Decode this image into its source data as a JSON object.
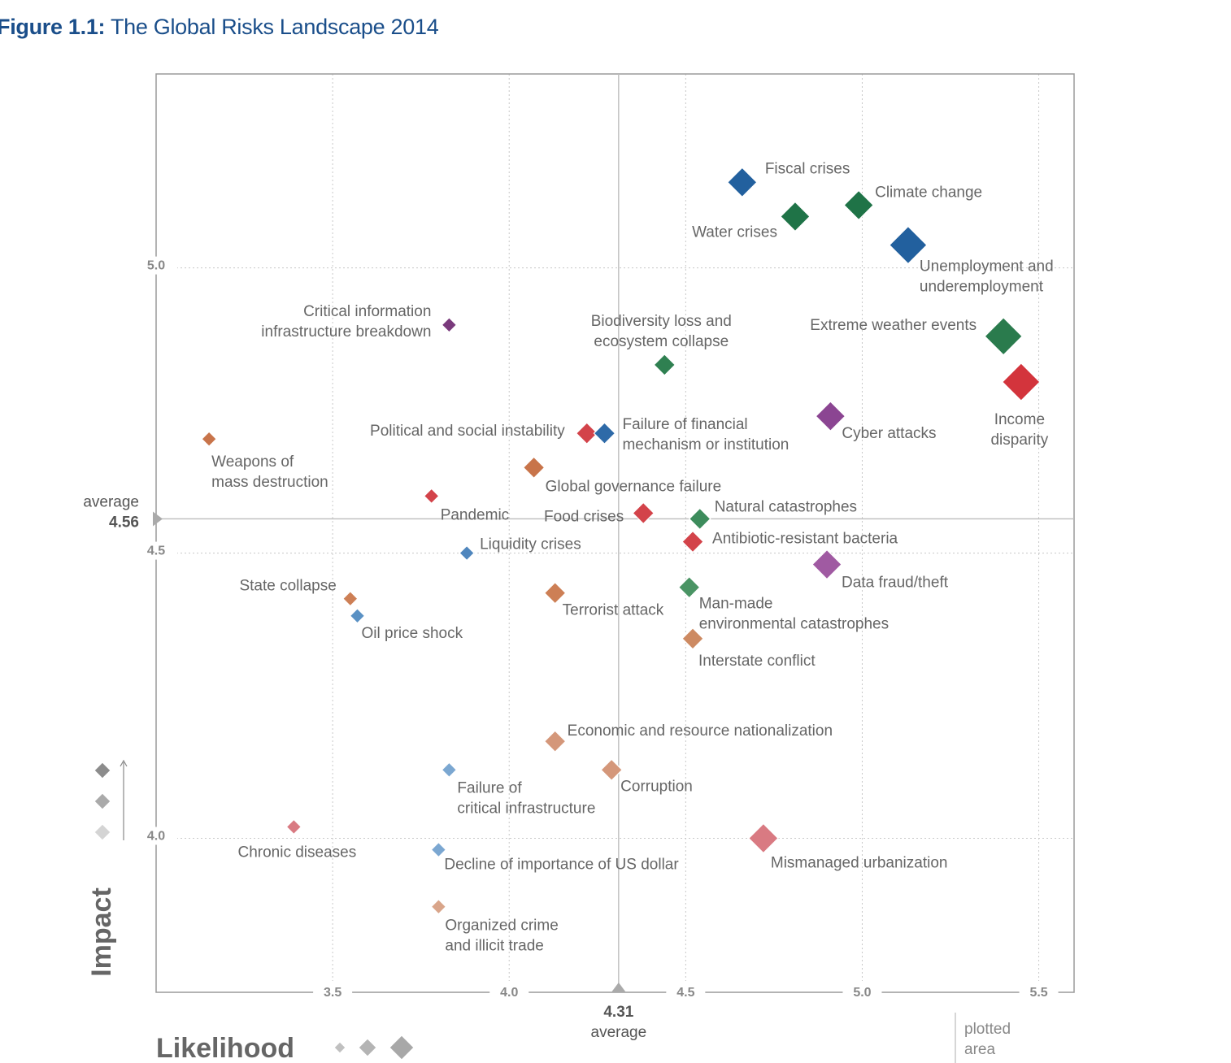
{
  "figure": {
    "label": "Figure 1.1:",
    "title": "The Global Risks Landscape 2014"
  },
  "chart_data": {
    "type": "scatter",
    "title": "The Global Risks Landscape 2014",
    "xlabel": "Likelihood",
    "ylabel": "Impact",
    "xlim": [
      3.0,
      5.6
    ],
    "ylim": [
      3.73,
      5.34
    ],
    "xticks": [
      "3.5",
      "4.0",
      "4.5",
      "5.0",
      "5.5"
    ],
    "yticks": [
      "4.0",
      "4.5",
      "5.0"
    ],
    "x_average": {
      "value": "4.31",
      "label": "average"
    },
    "y_average": {
      "value": "4.56",
      "label": "average"
    },
    "plotted_area_label": "plotted area",
    "colors": {
      "economic": "#2e6aa8",
      "environmental": "#2e7d4f",
      "geopolitical": "#c8744a",
      "societal": "#d23c43",
      "technological": "#8a4a8e"
    },
    "points": [
      {
        "label": "Fiscal crises",
        "x": 4.66,
        "y": 5.15,
        "size": 3,
        "category": "economic",
        "color": "#22609e"
      },
      {
        "label": "Climate change",
        "x": 4.99,
        "y": 5.11,
        "size": 3,
        "category": "environmental",
        "color": "#1f7347"
      },
      {
        "label": "Water crises",
        "x": 4.81,
        "y": 5.09,
        "size": 3,
        "category": "environmental",
        "color": "#1f7347"
      },
      {
        "label": "Unemployment and underemployment",
        "x": 5.13,
        "y": 5.04,
        "size": 4,
        "category": "economic",
        "color": "#22609e"
      },
      {
        "label": "Extreme weather events",
        "x": 5.4,
        "y": 4.88,
        "size": 4,
        "category": "environmental",
        "color": "#2a7b4d"
      },
      {
        "label": "Income disparity",
        "x": 5.45,
        "y": 4.8,
        "size": 4,
        "category": "societal",
        "color": "#d3343c"
      },
      {
        "label": "Cyber attacks",
        "x": 4.91,
        "y": 4.74,
        "size": 3,
        "category": "technological",
        "color": "#8b4592"
      },
      {
        "label": "Biodiversity loss and ecosystem collapse",
        "x": 4.44,
        "y": 4.83,
        "size": 2,
        "category": "environmental",
        "color": "#2f8051"
      },
      {
        "label": "Critical information infrastructure breakdown",
        "x": 3.83,
        "y": 4.9,
        "size": 1,
        "category": "technological",
        "color": "#7a3a7c"
      },
      {
        "label": "Political and social instability",
        "x": 4.22,
        "y": 4.71,
        "size": 2,
        "category": "societal",
        "color": "#d3434a"
      },
      {
        "label": "Failure of financial mechanism or institution",
        "x": 4.27,
        "y": 4.71,
        "size": 2,
        "category": "economic",
        "color": "#2e6aa8"
      },
      {
        "label": "Weapons of mass destruction",
        "x": 3.15,
        "y": 4.7,
        "size": 1,
        "category": "geopolitical",
        "color": "#c8744a"
      },
      {
        "label": "Global governance failure",
        "x": 4.07,
        "y": 4.65,
        "size": 2,
        "category": "geopolitical",
        "color": "#c8744a"
      },
      {
        "label": "Pandemic",
        "x": 3.78,
        "y": 4.6,
        "size": 1,
        "category": "societal",
        "color": "#d3434a"
      },
      {
        "label": "Food crises",
        "x": 4.38,
        "y": 4.57,
        "size": 2,
        "category": "societal",
        "color": "#d3434a"
      },
      {
        "label": "Natural catastrophes",
        "x": 4.54,
        "y": 4.56,
        "size": 2,
        "category": "environmental",
        "color": "#3d8c5c"
      },
      {
        "label": "Antibiotic-resistant bacteria",
        "x": 4.52,
        "y": 4.52,
        "size": 2,
        "category": "societal",
        "color": "#d3434a"
      },
      {
        "label": "Liquidity crises",
        "x": 3.88,
        "y": 4.5,
        "size": 1,
        "category": "economic",
        "color": "#4f86bd"
      },
      {
        "label": "Data fraud/theft",
        "x": 4.9,
        "y": 4.48,
        "size": 3,
        "category": "technological",
        "color": "#a05aa2"
      },
      {
        "label": "Man-made environmental catastrophes",
        "x": 4.51,
        "y": 4.44,
        "size": 2,
        "category": "environmental",
        "color": "#4a9464"
      },
      {
        "label": "State collapse",
        "x": 3.55,
        "y": 4.42,
        "size": 1,
        "category": "geopolitical",
        "color": "#cd7f55"
      },
      {
        "label": "Terrorist attack",
        "x": 4.13,
        "y": 4.43,
        "size": 2,
        "category": "geopolitical",
        "color": "#cd7f55"
      },
      {
        "label": "Oil price shock",
        "x": 3.57,
        "y": 4.39,
        "size": 1,
        "category": "economic",
        "color": "#5a91c4"
      },
      {
        "label": "Interstate conflict",
        "x": 4.52,
        "y": 4.35,
        "size": 2,
        "category": "geopolitical",
        "color": "#cd8a62"
      },
      {
        "label": "Economic and resource nationalization",
        "x": 4.13,
        "y": 4.17,
        "size": 2,
        "category": "geopolitical",
        "color": "#d4977a"
      },
      {
        "label": "Corruption",
        "x": 4.29,
        "y": 4.12,
        "size": 2,
        "category": "geopolitical",
        "color": "#d4977a"
      },
      {
        "label": "Failure of critical infrastructure",
        "x": 3.83,
        "y": 4.12,
        "size": 1,
        "category": "economic",
        "color": "#7ba7d1"
      },
      {
        "label": "Chronic diseases",
        "x": 3.39,
        "y": 4.02,
        "size": 1,
        "category": "societal",
        "color": "#d97a82"
      },
      {
        "label": "Mismanaged urbanization",
        "x": 4.72,
        "y": 4.0,
        "size": 3,
        "category": "societal",
        "color": "#d97a82"
      },
      {
        "label": "Decline of importance of US dollar",
        "x": 3.8,
        "y": 3.98,
        "size": 1,
        "category": "economic",
        "color": "#7ba7d1"
      },
      {
        "label": "Organized crime and illicit trade",
        "x": 3.8,
        "y": 3.88,
        "size": 1,
        "category": "geopolitical",
        "color": "#d9a58a"
      }
    ]
  }
}
